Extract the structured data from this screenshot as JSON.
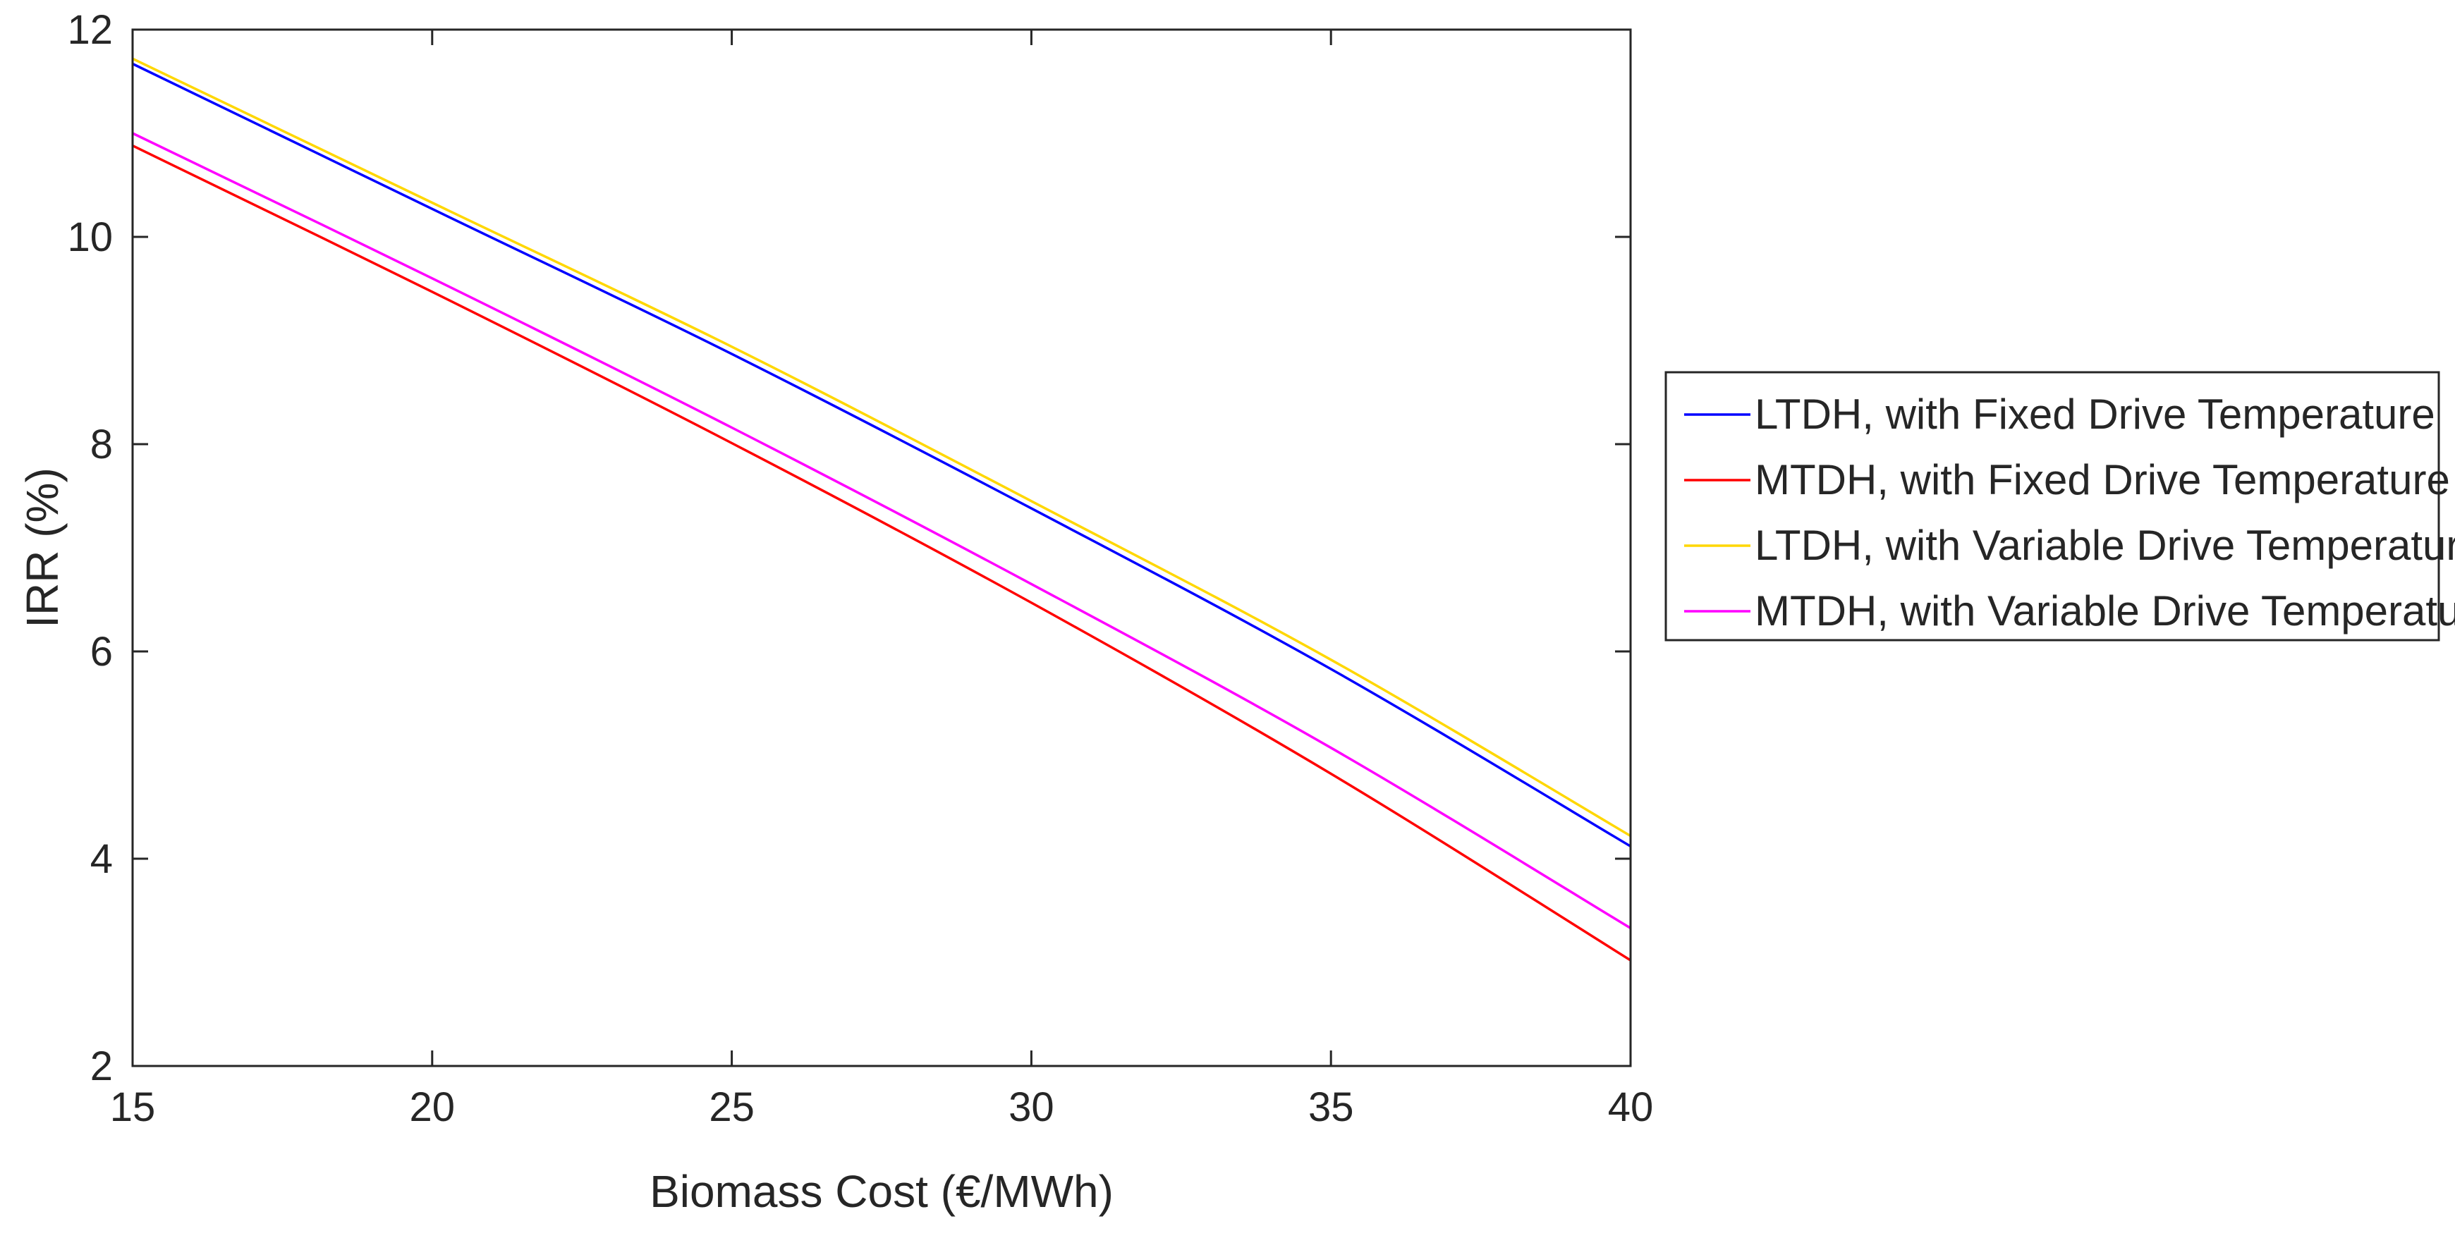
{
  "chart_data": {
    "type": "line",
    "title": "",
    "xlabel": "Biomass Cost (€/MWh)",
    "ylabel": "IRR (%)",
    "xlim": [
      15,
      40
    ],
    "ylim": [
      2,
      12
    ],
    "xticks": [
      15,
      20,
      25,
      30,
      35,
      40
    ],
    "yticks": [
      2,
      4,
      6,
      8,
      10,
      12
    ],
    "grid": false,
    "legend_position": "outside-right",
    "x": [
      15,
      20,
      25,
      30,
      35,
      40
    ],
    "series": [
      {
        "name": "LTDH, with Fixed Drive Temperature",
        "color": "#0000ff",
        "values": [
          11.67,
          10.27,
          8.87,
          7.38,
          5.83,
          4.12
        ]
      },
      {
        "name": "MTDH, with Fixed Drive Temperature",
        "color": "#ff0000",
        "values": [
          10.88,
          9.47,
          8.01,
          6.47,
          4.82,
          3.02
        ]
      },
      {
        "name": "LTDH, with Variable Drive Temperature",
        "color": "#ffd700",
        "values": [
          11.72,
          10.33,
          8.94,
          7.45,
          5.92,
          4.22
        ]
      },
      {
        "name": "MTDH, with Variable Drive Temperature",
        "color": "#ff00ff",
        "values": [
          11.0,
          9.6,
          8.16,
          6.65,
          5.07,
          3.33
        ]
      }
    ]
  }
}
